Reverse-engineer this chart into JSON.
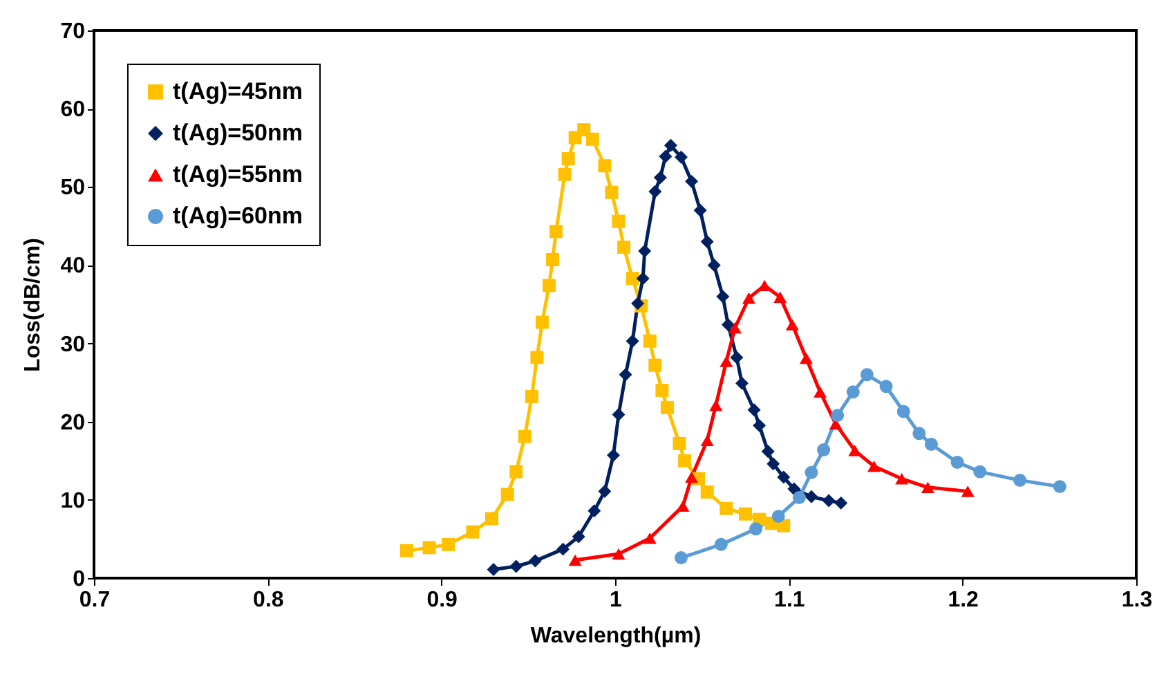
{
  "chart_data": {
    "type": "line",
    "xlabel": "Wavelength(µm)",
    "ylabel": "Loss(dB/cm)",
    "xlim": [
      0.7,
      1.3
    ],
    "xticks": [
      0.7,
      0.8,
      0.9,
      1,
      1.1,
      1.2,
      1.3
    ],
    "ylim": [
      0,
      70
    ],
    "yticks": [
      0,
      10,
      20,
      30,
      40,
      50,
      60,
      70
    ],
    "grid": false,
    "legend": "top left",
    "series": [
      {
        "name": "t(Ag)=45nm",
        "color": "#ffc000",
        "marker": "square",
        "x": [
          0.88,
          0.893,
          0.904,
          0.918,
          0.929,
          0.938,
          0.943,
          0.948,
          0.952,
          0.955,
          0.958,
          0.962,
          0.964,
          0.966,
          0.971,
          0.973,
          0.977,
          0.982,
          0.987,
          0.994,
          0.998,
          1.002,
          1.005,
          1.01,
          1.015,
          1.02,
          1.023,
          1.027,
          1.03,
          1.037,
          1.04,
          1.048,
          1.053,
          1.064,
          1.075,
          1.083,
          1.09,
          1.097
        ],
        "values": [
          3.5,
          3.9,
          4.3,
          5.9,
          7.6,
          10.7,
          13.6,
          18.1,
          23.2,
          28.2,
          32.7,
          37.4,
          40.7,
          44.3,
          51.6,
          53.6,
          56.3,
          57.3,
          56.1,
          52.7,
          49.3,
          45.6,
          42.3,
          38.3,
          34.8,
          30.3,
          27.2,
          24.0,
          21.8,
          17.2,
          15.0,
          12.7,
          11.0,
          8.9,
          8.2,
          7.5,
          7.0,
          6.7
        ]
      },
      {
        "name": "t(Ag)=50nm",
        "color": "#002060",
        "marker": "diamond",
        "x": [
          0.93,
          0.943,
          0.954,
          0.97,
          0.979,
          0.988,
          0.994,
          0.999,
          1.002,
          1.006,
          1.01,
          1.013,
          1.016,
          1.017,
          1.023,
          1.026,
          1.029,
          1.032,
          1.038,
          1.044,
          1.049,
          1.053,
          1.057,
          1.062,
          1.065,
          1.07,
          1.073,
          1.08,
          1.083,
          1.088,
          1.091,
          1.097,
          1.103,
          1.113,
          1.123,
          1.13
        ],
        "values": [
          1.1,
          1.5,
          2.2,
          3.7,
          5.3,
          8.6,
          11.1,
          15.7,
          20.9,
          26.0,
          30.3,
          35.1,
          38.3,
          41.8,
          49.4,
          51.2,
          53.9,
          55.3,
          53.8,
          50.7,
          47.0,
          43.0,
          40.0,
          36.0,
          32.4,
          28.2,
          24.9,
          21.5,
          19.5,
          16.2,
          14.6,
          12.9,
          11.4,
          10.4,
          9.9,
          9.6
        ]
      },
      {
        "name": "t(Ag)=55nm",
        "color": "#ff0000",
        "marker": "triangle",
        "x": [
          0.977,
          1.002,
          1.02,
          1.039,
          1.044,
          1.053,
          1.058,
          1.064,
          1.069,
          1.077,
          1.086,
          1.095,
          1.102,
          1.11,
          1.118,
          1.127,
          1.138,
          1.149,
          1.165,
          1.18,
          1.203
        ],
        "values": [
          2.3,
          3.1,
          5.1,
          9.2,
          12.9,
          17.6,
          22.1,
          27.7,
          32.0,
          35.8,
          37.4,
          35.9,
          32.4,
          28.1,
          23.8,
          19.7,
          16.3,
          14.3,
          12.7,
          11.6,
          11.1
        ]
      },
      {
        "name": "t(Ag)=60nm",
        "color": "#5b9bd5",
        "marker": "circle",
        "x": [
          1.038,
          1.061,
          1.081,
          1.094,
          1.106,
          1.113,
          1.12,
          1.128,
          1.137,
          1.145,
          1.156,
          1.166,
          1.175,
          1.182,
          1.197,
          1.21,
          1.233,
          1.256
        ],
        "values": [
          2.6,
          4.3,
          6.3,
          7.9,
          10.3,
          13.5,
          16.4,
          20.8,
          23.8,
          26.0,
          24.5,
          21.3,
          18.5,
          17.1,
          14.8,
          13.6,
          12.5,
          11.7
        ]
      }
    ]
  }
}
